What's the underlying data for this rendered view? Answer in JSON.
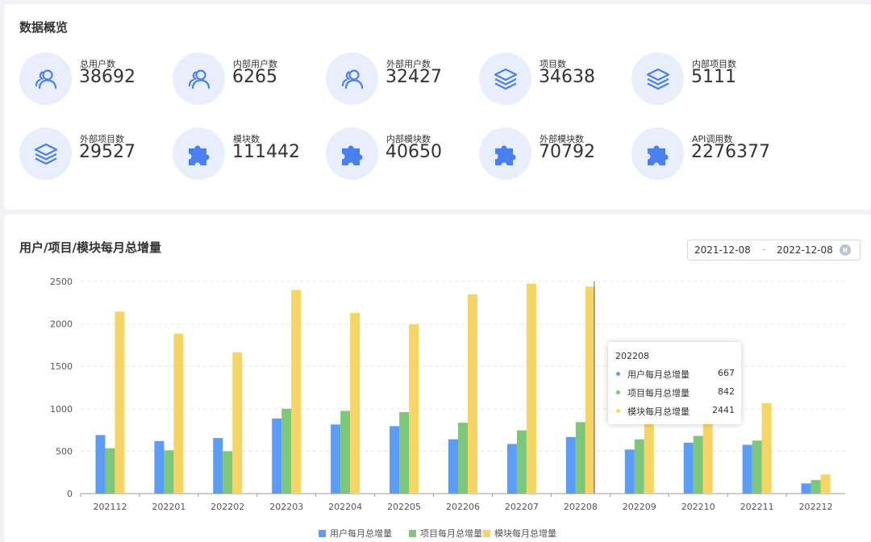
{
  "overview": {
    "title": "数据概览",
    "stats": [
      {
        "label": "总用户数",
        "value": "38692",
        "icon": "users-icon"
      },
      {
        "label": "内部用户数",
        "value": "6265",
        "icon": "users-icon"
      },
      {
        "label": "外部用户数",
        "value": "32427",
        "icon": "users-icon"
      },
      {
        "label": "项目数",
        "value": "34638",
        "icon": "layers-icon"
      },
      {
        "label": "内部项目数",
        "value": "5111",
        "icon": "layers-icon"
      },
      {
        "label": "外部项目数",
        "value": "29527",
        "icon": "layers-icon"
      },
      {
        "label": "模块数",
        "value": "111442",
        "icon": "puzzle-icon"
      },
      {
        "label": "内部模块数",
        "value": "40650",
        "icon": "puzzle-icon"
      },
      {
        "label": "外部模块数",
        "value": "70792",
        "icon": "puzzle-icon"
      },
      {
        "label": "API调用数",
        "value": "2276377",
        "icon": "puzzle-icon"
      }
    ]
  },
  "chart_section": {
    "title": "用户/项目/模块每月总增量",
    "date_start": "2021-12-08",
    "date_separator": "-",
    "date_end": "2022-12-08"
  },
  "colors": {
    "user": "#5b9cf8",
    "project": "#7dc77a",
    "module": "#f7d564",
    "icon": "#4a7ff0",
    "icon_bg": "#e8eefb"
  },
  "chart_data": {
    "type": "bar",
    "categories": [
      "202112",
      "202201",
      "202202",
      "202203",
      "202204",
      "202205",
      "202206",
      "202207",
      "202208",
      "202209",
      "202210",
      "202211",
      "202212"
    ],
    "series": [
      {
        "name": "用户每月总增量",
        "values": [
          690,
          620,
          655,
          885,
          815,
          795,
          640,
          585,
          667,
          520,
          600,
          575,
          120
        ]
      },
      {
        "name": "项目每月总增量",
        "values": [
          535,
          510,
          500,
          1000,
          975,
          960,
          835,
          745,
          842,
          640,
          680,
          625,
          160
        ]
      },
      {
        "name": "模块每月总增量",
        "values": [
          2145,
          1885,
          1665,
          2400,
          2130,
          1995,
          2350,
          2475,
          2441,
          1240,
          1325,
          1065,
          225
        ]
      }
    ],
    "ylim": [
      0,
      2500
    ],
    "yticks": [
      0,
      500,
      1000,
      1500,
      2000,
      2500
    ],
    "grid": true,
    "legend_position": "bottom",
    "tooltip": {
      "title": "202208",
      "rows": [
        {
          "name": "用户每月总增量",
          "value": "667"
        },
        {
          "name": "项目每月总增量",
          "value": "842"
        },
        {
          "name": "模块每月总增量",
          "value": "2441"
        }
      ]
    }
  }
}
